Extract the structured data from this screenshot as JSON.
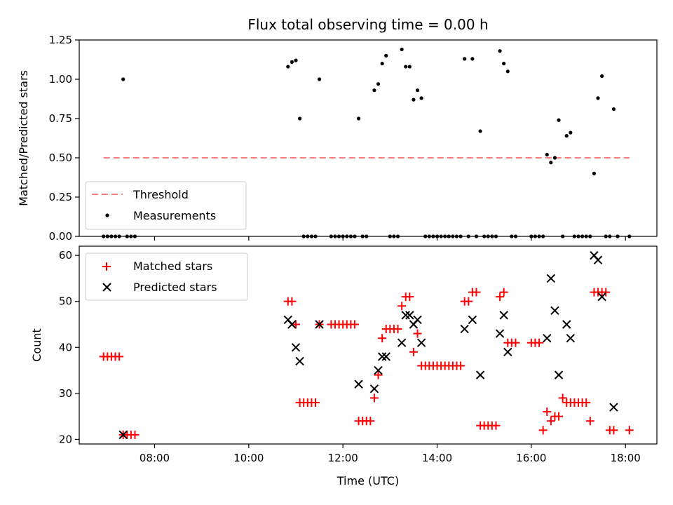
{
  "chart_data": [
    {
      "type": "scatter",
      "title": "Flux total observing time = 0.00 h",
      "xlabel": "",
      "ylabel": "Matched/Predicted stars",
      "xlim": [
        "06:24",
        "18:40"
      ],
      "ylim": [
        0,
        1.25
      ],
      "yticks": [
        "0.00",
        "0.25",
        "0.50",
        "0.75",
        "1.00",
        "1.25"
      ],
      "legend_position": "lower-left",
      "series": [
        {
          "name": "Threshold",
          "kind": "dashed-line",
          "color": "#ff7f7f",
          "x": [
            "06:55",
            "18:05"
          ],
          "y": [
            0.5,
            0.5
          ]
        },
        {
          "name": "Measurements",
          "kind": "dots",
          "color": "#000000",
          "points": [
            [
              "06:55",
              0
            ],
            [
              "07:00",
              0
            ],
            [
              "07:05",
              0
            ],
            [
              "07:10",
              0
            ],
            [
              "07:15",
              0
            ],
            [
              "07:20",
              1.0
            ],
            [
              "07:25",
              0
            ],
            [
              "07:30",
              0
            ],
            [
              "07:35",
              0
            ],
            [
              "10:50",
              1.08
            ],
            [
              "10:55",
              1.11
            ],
            [
              "11:00",
              1.12
            ],
            [
              "11:05",
              0.75
            ],
            [
              "11:10",
              0
            ],
            [
              "11:15",
              0
            ],
            [
              "11:20",
              0
            ],
            [
              "11:25",
              0
            ],
            [
              "11:30",
              1.0
            ],
            [
              "11:45",
              0
            ],
            [
              "11:50",
              0
            ],
            [
              "11:55",
              0
            ],
            [
              "12:00",
              0
            ],
            [
              "12:05",
              0
            ],
            [
              "12:10",
              0
            ],
            [
              "12:15",
              0
            ],
            [
              "12:20",
              0.75
            ],
            [
              "12:25",
              0
            ],
            [
              "12:30",
              0
            ],
            [
              "12:40",
              0.93
            ],
            [
              "12:45",
              0.97
            ],
            [
              "12:50",
              1.1
            ],
            [
              "12:55",
              1.15
            ],
            [
              "13:00",
              0
            ],
            [
              "13:05",
              0
            ],
            [
              "13:10",
              0
            ],
            [
              "13:15",
              1.19
            ],
            [
              "13:20",
              1.08
            ],
            [
              "13:25",
              1.08
            ],
            [
              "13:30",
              0.87
            ],
            [
              "13:35",
              0.93
            ],
            [
              "13:40",
              0.88
            ],
            [
              "13:45",
              0
            ],
            [
              "13:50",
              0
            ],
            [
              "13:55",
              0
            ],
            [
              "14:00",
              0
            ],
            [
              "14:05",
              0
            ],
            [
              "14:10",
              0
            ],
            [
              "14:15",
              0
            ],
            [
              "14:20",
              0
            ],
            [
              "14:25",
              0
            ],
            [
              "14:30",
              0
            ],
            [
              "14:35",
              1.13
            ],
            [
              "14:40",
              0
            ],
            [
              "14:45",
              1.13
            ],
            [
              "14:50",
              0
            ],
            [
              "14:55",
              0.67
            ],
            [
              "15:00",
              0
            ],
            [
              "15:05",
              0
            ],
            [
              "15:10",
              0
            ],
            [
              "15:15",
              0
            ],
            [
              "15:20",
              1.18
            ],
            [
              "15:25",
              1.1
            ],
            [
              "15:30",
              1.05
            ],
            [
              "15:35",
              0
            ],
            [
              "15:40",
              0
            ],
            [
              "16:00",
              0
            ],
            [
              "16:05",
              0
            ],
            [
              "16:10",
              0
            ],
            [
              "16:15",
              0
            ],
            [
              "16:20",
              0.52
            ],
            [
              "16:25",
              0.47
            ],
            [
              "16:30",
              0.5
            ],
            [
              "16:35",
              0.74
            ],
            [
              "16:40",
              0
            ],
            [
              "16:45",
              0.64
            ],
            [
              "16:50",
              0.66
            ],
            [
              "16:55",
              0
            ],
            [
              "17:00",
              0
            ],
            [
              "17:05",
              0
            ],
            [
              "17:10",
              0
            ],
            [
              "17:15",
              0
            ],
            [
              "17:20",
              0.4
            ],
            [
              "17:25",
              0.88
            ],
            [
              "17:30",
              1.02
            ],
            [
              "17:35",
              0
            ],
            [
              "17:40",
              0
            ],
            [
              "17:45",
              0.81
            ],
            [
              "17:50",
              0
            ],
            [
              "18:05",
              0
            ]
          ]
        }
      ]
    },
    {
      "type": "scatter",
      "title": "",
      "xlabel": "Time (UTC)",
      "ylabel": "Count",
      "xlim": [
        "06:24",
        "18:40"
      ],
      "ylim": [
        19,
        62
      ],
      "xticks": [
        "08:00",
        "10:00",
        "12:00",
        "14:00",
        "16:00",
        "18:00"
      ],
      "yticks": [
        "20",
        "30",
        "40",
        "50",
        "60"
      ],
      "legend_position": "upper-left",
      "series": [
        {
          "name": "Matched stars",
          "kind": "plus",
          "color": "#ff0000",
          "points": [
            [
              "06:55",
              38
            ],
            [
              "07:00",
              38
            ],
            [
              "07:05",
              38
            ],
            [
              "07:10",
              38
            ],
            [
              "07:15",
              38
            ],
            [
              "07:20",
              21
            ],
            [
              "07:25",
              21
            ],
            [
              "07:30",
              21
            ],
            [
              "07:35",
              21
            ],
            [
              "10:50",
              50
            ],
            [
              "10:55",
              50
            ],
            [
              "11:00",
              45
            ],
            [
              "11:05",
              28
            ],
            [
              "11:10",
              28
            ],
            [
              "11:15",
              28
            ],
            [
              "11:20",
              28
            ],
            [
              "11:25",
              28
            ],
            [
              "11:30",
              45
            ],
            [
              "11:45",
              45
            ],
            [
              "11:50",
              45
            ],
            [
              "11:55",
              45
            ],
            [
              "12:00",
              45
            ],
            [
              "12:05",
              45
            ],
            [
              "12:10",
              45
            ],
            [
              "12:15",
              45
            ],
            [
              "12:20",
              24
            ],
            [
              "12:25",
              24
            ],
            [
              "12:30",
              24
            ],
            [
              "12:35",
              24
            ],
            [
              "12:40",
              29
            ],
            [
              "12:45",
              34
            ],
            [
              "12:50",
              42
            ],
            [
              "12:55",
              44
            ],
            [
              "13:00",
              44
            ],
            [
              "13:05",
              44
            ],
            [
              "13:10",
              44
            ],
            [
              "13:15",
              49
            ],
            [
              "13:20",
              51
            ],
            [
              "13:25",
              51
            ],
            [
              "13:30",
              39
            ],
            [
              "13:35",
              43
            ],
            [
              "13:40",
              36
            ],
            [
              "13:45",
              36
            ],
            [
              "13:50",
              36
            ],
            [
              "13:55",
              36
            ],
            [
              "14:00",
              36
            ],
            [
              "14:05",
              36
            ],
            [
              "14:10",
              36
            ],
            [
              "14:15",
              36
            ],
            [
              "14:20",
              36
            ],
            [
              "14:25",
              36
            ],
            [
              "14:30",
              36
            ],
            [
              "14:35",
              50
            ],
            [
              "14:40",
              50
            ],
            [
              "14:45",
              52
            ],
            [
              "14:50",
              52
            ],
            [
              "14:55",
              23
            ],
            [
              "15:00",
              23
            ],
            [
              "15:05",
              23
            ],
            [
              "15:10",
              23
            ],
            [
              "15:15",
              23
            ],
            [
              "15:20",
              51
            ],
            [
              "15:25",
              52
            ],
            [
              "15:30",
              41
            ],
            [
              "15:35",
              41
            ],
            [
              "15:40",
              41
            ],
            [
              "16:00",
              41
            ],
            [
              "16:05",
              41
            ],
            [
              "16:10",
              41
            ],
            [
              "16:15",
              22
            ],
            [
              "16:20",
              26
            ],
            [
              "16:25",
              24
            ],
            [
              "16:30",
              25
            ],
            [
              "16:35",
              25
            ],
            [
              "16:40",
              29
            ],
            [
              "16:45",
              28
            ],
            [
              "16:50",
              28
            ],
            [
              "16:55",
              28
            ],
            [
              "17:00",
              28
            ],
            [
              "17:05",
              28
            ],
            [
              "17:10",
              28
            ],
            [
              "17:15",
              24
            ],
            [
              "17:20",
              52
            ],
            [
              "17:25",
              52
            ],
            [
              "17:30",
              52
            ],
            [
              "17:35",
              52
            ],
            [
              "17:40",
              22
            ],
            [
              "17:45",
              22
            ],
            [
              "18:05",
              22
            ]
          ]
        },
        {
          "name": "Predicted stars",
          "kind": "cross",
          "color": "#000000",
          "points": [
            [
              "07:20",
              21
            ],
            [
              "10:50",
              46
            ],
            [
              "10:55",
              45
            ],
            [
              "11:00",
              40
            ],
            [
              "11:05",
              37
            ],
            [
              "11:30",
              45
            ],
            [
              "12:20",
              32
            ],
            [
              "12:40",
              31
            ],
            [
              "12:45",
              35
            ],
            [
              "12:50",
              38
            ],
            [
              "12:55",
              38
            ],
            [
              "13:15",
              41
            ],
            [
              "13:20",
              47
            ],
            [
              "13:25",
              47
            ],
            [
              "13:30",
              45
            ],
            [
              "13:35",
              46
            ],
            [
              "13:40",
              41
            ],
            [
              "14:35",
              44
            ],
            [
              "14:45",
              46
            ],
            [
              "14:55",
              34
            ],
            [
              "15:20",
              43
            ],
            [
              "15:25",
              47
            ],
            [
              "15:30",
              39
            ],
            [
              "16:20",
              42
            ],
            [
              "16:25",
              55
            ],
            [
              "16:30",
              48
            ],
            [
              "16:35",
              34
            ],
            [
              "16:45",
              45
            ],
            [
              "16:50",
              42
            ],
            [
              "17:20",
              60
            ],
            [
              "17:25",
              59
            ],
            [
              "17:30",
              51
            ],
            [
              "17:45",
              27
            ]
          ]
        }
      ]
    }
  ]
}
